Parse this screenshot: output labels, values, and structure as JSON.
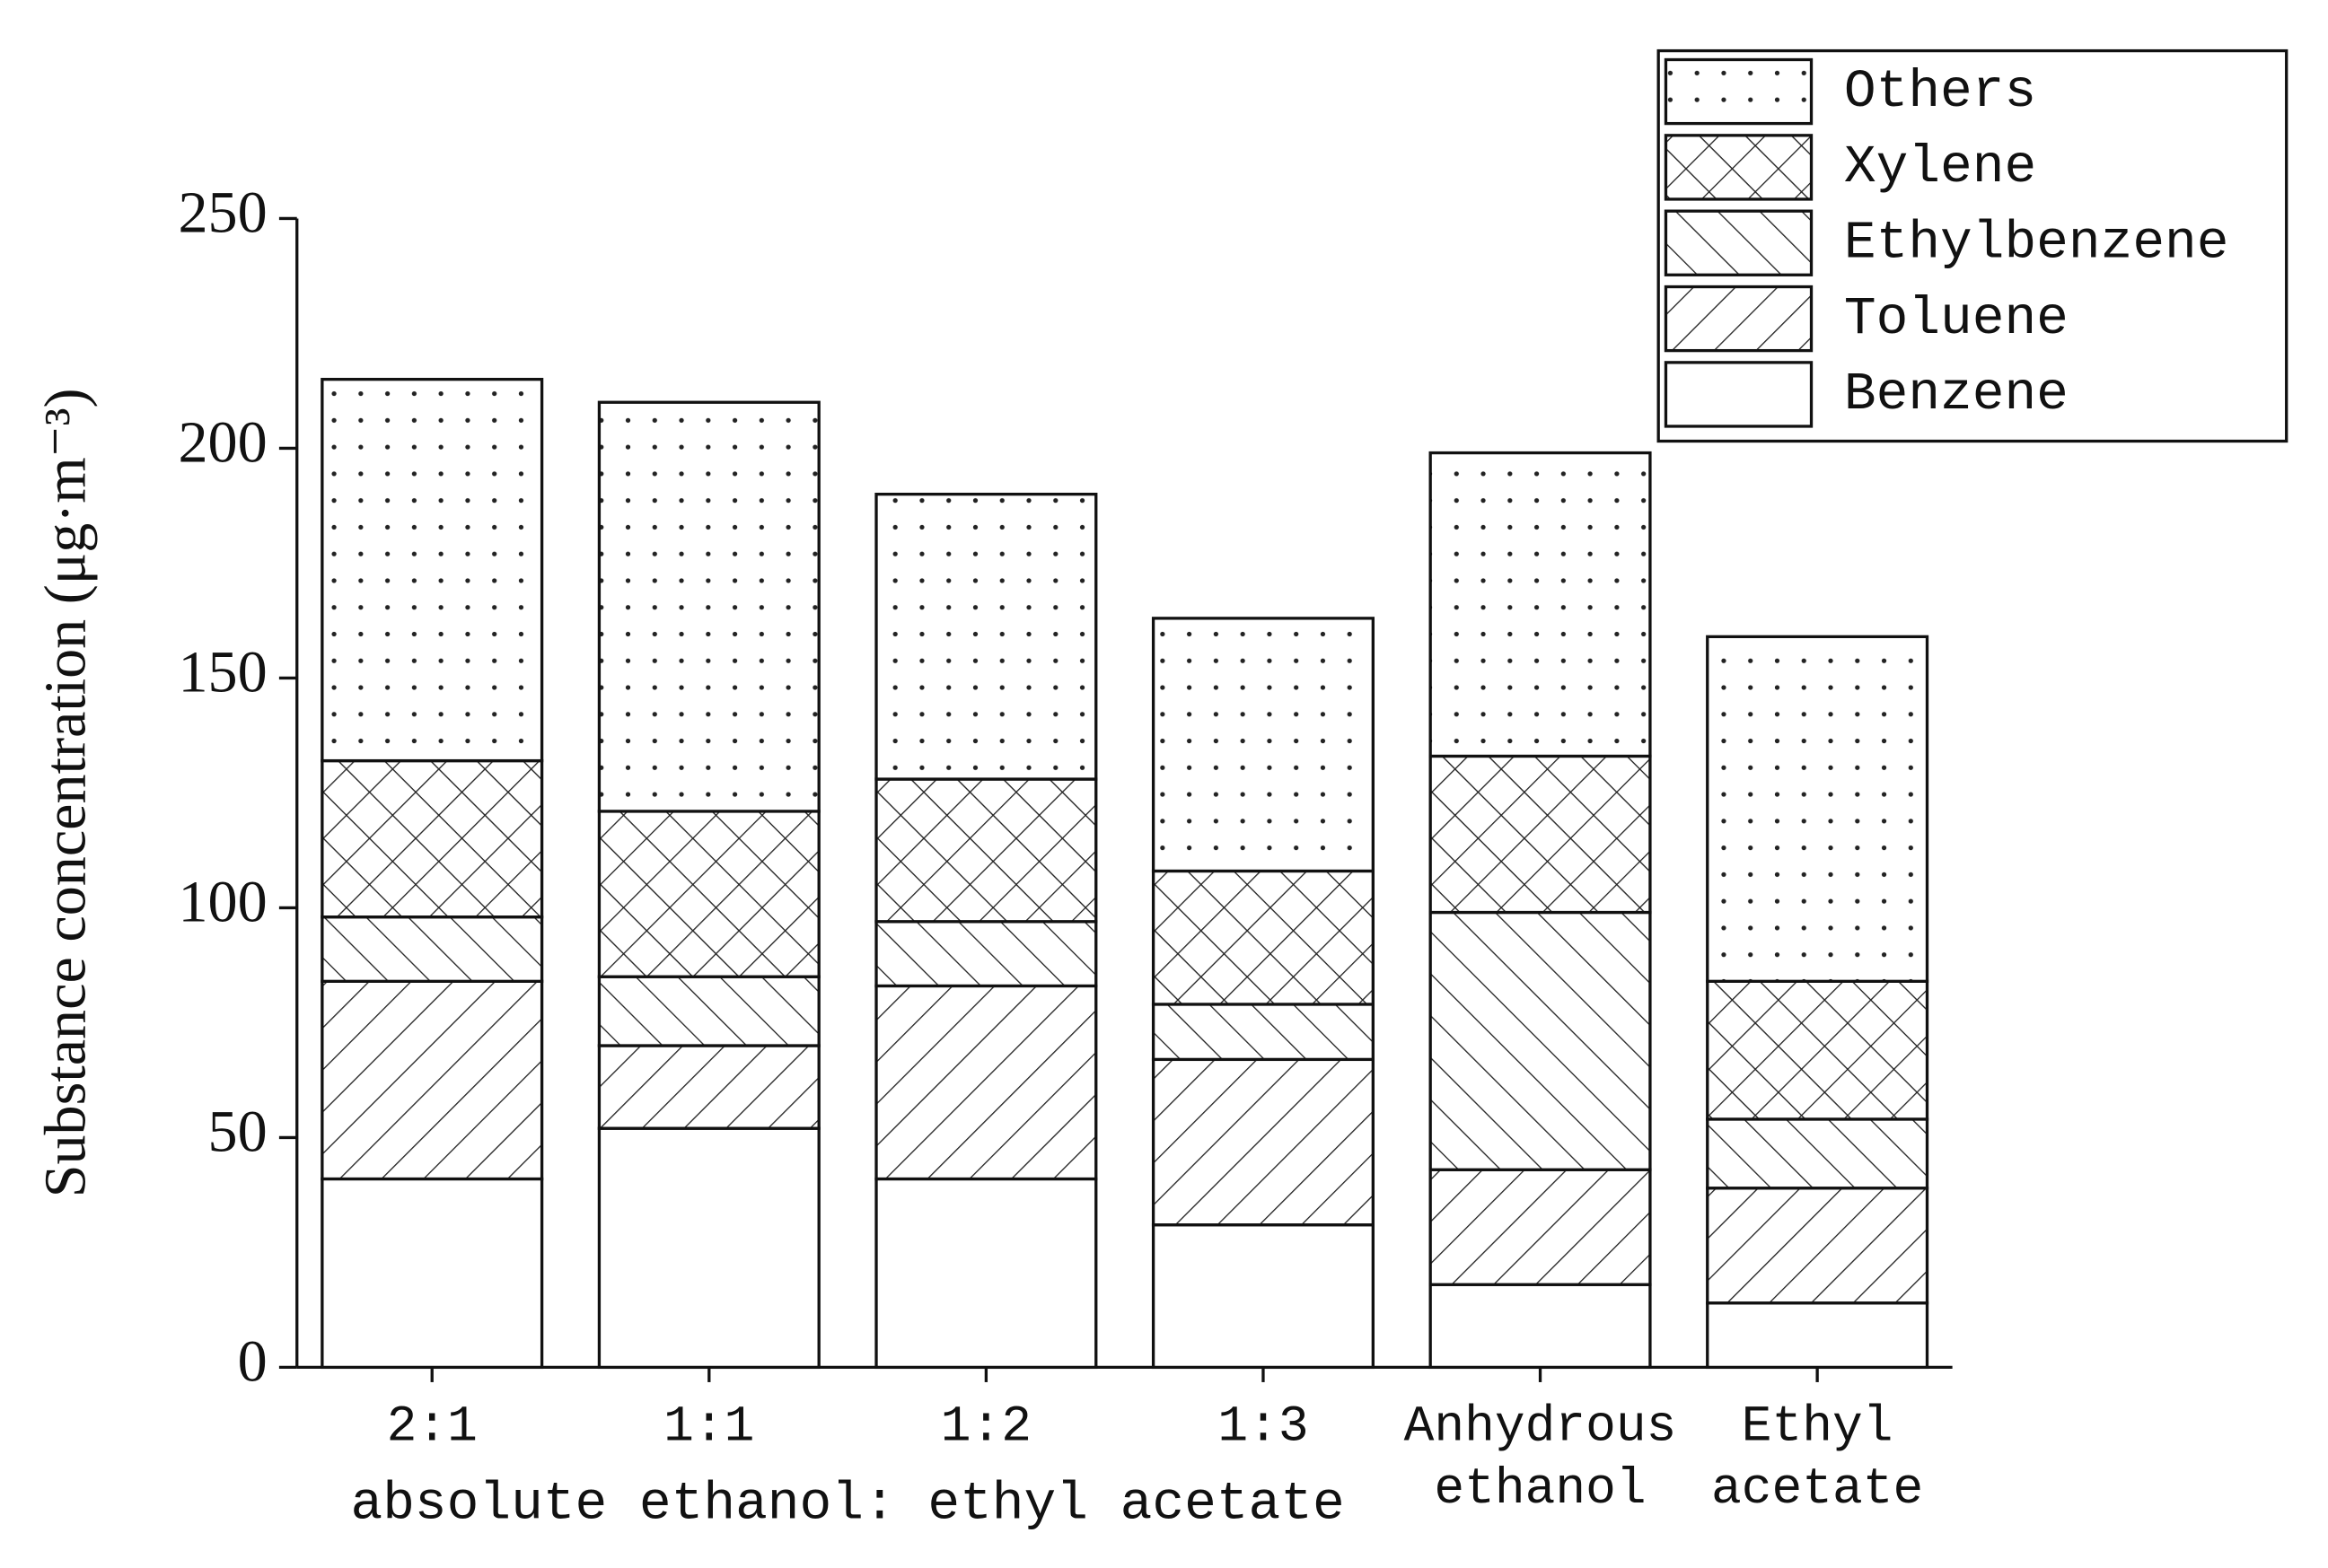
{
  "chart_data": {
    "type": "stacked_bar",
    "y_label": "Substance concentration (μg·m⁻³)",
    "categories": [
      "2:1",
      "1:1",
      "1:2",
      "1:3",
      "Anhydrous ethanol",
      "Ethyl acetate"
    ],
    "group_label": "absolute ethanol: ethyl acetate",
    "series": [
      {
        "name": "Benzene",
        "color": "#ffffff",
        "pattern": "none",
        "values": [
          41,
          52,
          41,
          31,
          18,
          14
        ]
      },
      {
        "name": "Toluene",
        "color": "#ffffff",
        "pattern": "slash",
        "values": [
          43,
          18,
          42,
          36,
          25,
          25
        ]
      },
      {
        "name": "Ethylbenzene",
        "color": "#ffffff",
        "pattern": "backslash",
        "values": [
          14,
          15,
          14,
          12,
          56,
          15
        ]
      },
      {
        "name": "Xylene",
        "color": "#ffffff",
        "pattern": "crosshatch",
        "values": [
          34,
          36,
          31,
          29,
          34,
          30
        ]
      },
      {
        "name": "Others",
        "color": "#ffffff",
        "pattern": "dots",
        "values": [
          83,
          89,
          62,
          55,
          66,
          75
        ]
      }
    ],
    "ylim": [
      0,
      250
    ],
    "yticks": [
      0,
      50,
      100,
      150,
      200,
      250
    ],
    "legend": "upper right"
  }
}
